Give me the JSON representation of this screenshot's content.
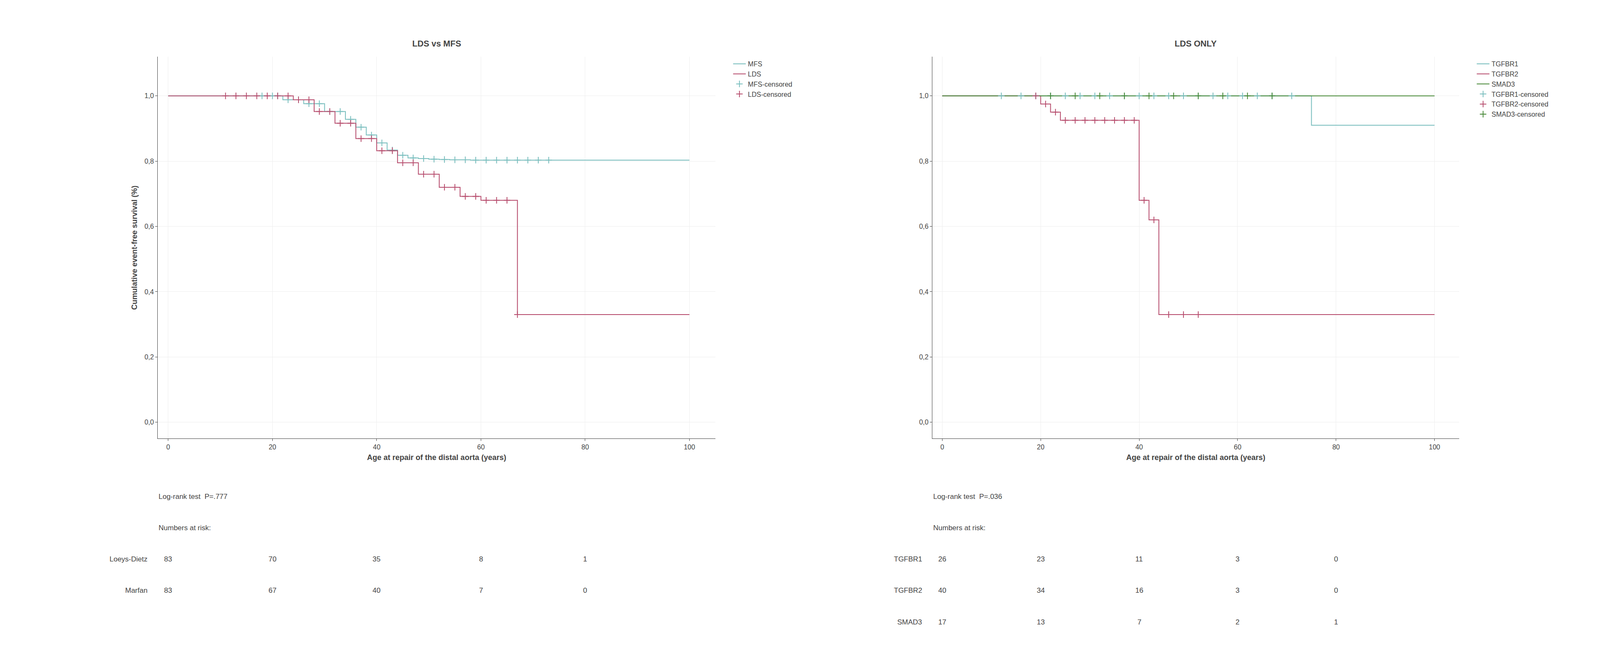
{
  "chart_data": [
    {
      "type": "step",
      "title": "LDS vs MFS",
      "x_label": "Age at repair of the distal aorta (years)",
      "y_label": "Cumulative event-free survival (%)",
      "xlim": [
        -2,
        105
      ],
      "ylim": [
        -0.05,
        1.12
      ],
      "xticks": [
        0,
        20,
        40,
        60,
        80,
        100
      ],
      "yticks": [
        {
          "value": 0.0,
          "label": "0,0"
        },
        {
          "value": 0.2,
          "label": "0,2"
        },
        {
          "value": 0.4,
          "label": "0,4"
        },
        {
          "value": 0.6,
          "label": "0,6"
        },
        {
          "value": 0.8,
          "label": "0,8"
        },
        {
          "value": 1.0,
          "label": "1,0"
        }
      ],
      "grid": true,
      "legend": "right",
      "series": [
        {
          "name": "MFS",
          "color": "#7BBFBF",
          "x": [
            0,
            17,
            22,
            26,
            30,
            34,
            36,
            38,
            40,
            42,
            44,
            46,
            48,
            50,
            52,
            54,
            56,
            58,
            60,
            62,
            65,
            68,
            72,
            75,
            100
          ],
          "values": [
            1.0,
            1.0,
            0.988,
            0.976,
            0.952,
            0.928,
            0.904,
            0.88,
            0.856,
            0.834,
            0.818,
            0.81,
            0.808,
            0.806,
            0.805,
            0.804,
            0.804,
            0.803,
            0.803,
            0.803,
            0.803,
            0.803,
            0.803,
            0.803,
            0.803
          ]
        },
        {
          "name": "LDS",
          "color": "#B85070",
          "x": [
            0,
            10,
            14,
            20,
            24,
            28,
            32,
            36,
            40,
            44,
            48,
            52,
            56,
            60,
            62,
            67,
            100
          ],
          "values": [
            1.0,
            1.0,
            1.0,
            1.0,
            0.988,
            0.952,
            0.916,
            0.869,
            0.832,
            0.795,
            0.76,
            0.72,
            0.692,
            0.68,
            0.68,
            0.33,
            0.33
          ]
        },
        {
          "name": "MFS-censored",
          "type": "scatter",
          "marker": "cross",
          "color": "#7BBFBF",
          "x": [
            18,
            20,
            21,
            23,
            25,
            27,
            29,
            31,
            33,
            35,
            37,
            39,
            41,
            43,
            45,
            47,
            49,
            51,
            53,
            55,
            57,
            59,
            61,
            63,
            65,
            67,
            69,
            71,
            73
          ],
          "values": [
            1.0,
            1.0,
            1.0,
            0.988,
            0.988,
            0.976,
            0.976,
            0.952,
            0.952,
            0.928,
            0.904,
            0.88,
            0.856,
            0.834,
            0.818,
            0.81,
            0.808,
            0.806,
            0.805,
            0.804,
            0.804,
            0.803,
            0.803,
            0.803,
            0.803,
            0.803,
            0.803,
            0.803,
            0.803
          ]
        },
        {
          "name": "LDS-censored",
          "type": "scatter",
          "marker": "cross",
          "color": "#B85070",
          "x": [
            11,
            13,
            15,
            17,
            19,
            21,
            23,
            25,
            27,
            29,
            31,
            33,
            35,
            37,
            39,
            41,
            43,
            45,
            47,
            49,
            51,
            53,
            55,
            57,
            59,
            61,
            63,
            65,
            67
          ],
          "values": [
            1.0,
            1.0,
            1.0,
            1.0,
            1.0,
            1.0,
            1.0,
            0.988,
            0.988,
            0.952,
            0.952,
            0.916,
            0.916,
            0.869,
            0.869,
            0.832,
            0.832,
            0.795,
            0.795,
            0.76,
            0.76,
            0.72,
            0.72,
            0.692,
            0.692,
            0.68,
            0.68,
            0.68,
            0.33
          ]
        }
      ],
      "annotations": [
        {
          "text": "Log-rank test  P=.777"
        }
      ],
      "numbers_at_risk": {
        "label": "Numbers at risk:",
        "x": [
          0,
          20,
          40,
          60,
          80
        ],
        "rows": [
          {
            "label": "Loeys-Dietz",
            "values": [
              83,
              70,
              35,
              8,
              1
            ]
          },
          {
            "label": "Marfan",
            "values": [
              83,
              67,
              40,
              7,
              0
            ]
          }
        ]
      }
    },
    {
      "type": "step",
      "title": "LDS ONLY",
      "x_label": "Age at repair of the distal aorta (years)",
      "xlim": [
        -2,
        105
      ],
      "ylim": [
        -0.05,
        1.12
      ],
      "xticks": [
        0,
        20,
        40,
        60,
        80,
        100
      ],
      "yticks": [
        {
          "value": 0.0,
          "label": "0,0"
        },
        {
          "value": 0.2,
          "label": "0,2"
        },
        {
          "value": 0.4,
          "label": "0,4"
        },
        {
          "value": 0.6,
          "label": "0,6"
        },
        {
          "value": 0.8,
          "label": "0,8"
        },
        {
          "value": 1.0,
          "label": "1,0"
        }
      ],
      "grid": true,
      "legend": "right",
      "series": [
        {
          "name": "TGFBR1",
          "color": "#7BBFBF",
          "x": [
            0,
            10,
            15,
            20,
            25,
            30,
            35,
            40,
            45,
            50,
            55,
            60,
            65,
            70,
            75,
            100
          ],
          "values": [
            1.0,
            1.0,
            1.0,
            1.0,
            1.0,
            1.0,
            1.0,
            1.0,
            1.0,
            1.0,
            1.0,
            1.0,
            1.0,
            1.0,
            0.91,
            0.91
          ]
        },
        {
          "name": "TGFBR2",
          "color": "#B85070",
          "x": [
            0,
            18,
            20,
            22,
            24,
            26,
            28,
            30,
            32,
            34,
            36,
            38,
            40,
            42,
            44,
            58,
            100
          ],
          "values": [
            1.0,
            1.0,
            0.975,
            0.95,
            0.925,
            0.925,
            0.925,
            0.925,
            0.925,
            0.925,
            0.925,
            0.925,
            0.68,
            0.62,
            0.33,
            0.33,
            0.33
          ]
        },
        {
          "name": "SMAD3",
          "color": "#4A8A3A",
          "x": [
            0,
            20,
            25,
            30,
            35,
            40,
            45,
            50,
            55,
            60,
            65,
            70,
            100
          ],
          "values": [
            1.0,
            1.0,
            1.0,
            1.0,
            1.0,
            1.0,
            1.0,
            1.0,
            1.0,
            1.0,
            1.0,
            1.0,
            1.0
          ]
        },
        {
          "name": "TGFBR1-censored",
          "type": "scatter",
          "marker": "cross",
          "color": "#7BBFBF",
          "x": [
            12,
            16,
            19,
            22,
            25,
            28,
            31,
            34,
            37,
            40,
            43,
            46,
            49,
            52,
            55,
            58,
            61,
            64,
            67,
            71
          ],
          "values": [
            1.0,
            1.0,
            1.0,
            1.0,
            1.0,
            1.0,
            1.0,
            1.0,
            1.0,
            1.0,
            1.0,
            1.0,
            1.0,
            1.0,
            1.0,
            1.0,
            1.0,
            1.0,
            1.0,
            1.0
          ]
        },
        {
          "name": "TGFBR2-censored",
          "type": "scatter",
          "marker": "cross",
          "color": "#B85070",
          "x": [
            19,
            21,
            23,
            25,
            27,
            29,
            31,
            33,
            35,
            37,
            39,
            41,
            43,
            46,
            49,
            52
          ],
          "values": [
            1.0,
            0.975,
            0.95,
            0.925,
            0.925,
            0.925,
            0.925,
            0.925,
            0.925,
            0.925,
            0.925,
            0.68,
            0.62,
            0.33,
            0.33,
            0.33
          ]
        },
        {
          "name": "SMAD3-censored",
          "type": "scatter",
          "marker": "cross",
          "color": "#4A8A3A",
          "x": [
            22,
            27,
            32,
            37,
            42,
            47,
            52,
            57,
            62,
            67
          ],
          "values": [
            1.0,
            1.0,
            1.0,
            1.0,
            1.0,
            1.0,
            1.0,
            1.0,
            1.0,
            1.0
          ]
        }
      ],
      "annotations": [
        {
          "text": "Log-rank test  P=.036"
        }
      ],
      "numbers_at_risk": {
        "label": "Numbers at risk:",
        "x": [
          0,
          20,
          40,
          60,
          80
        ],
        "rows": [
          {
            "label": "TGFBR1",
            "values": [
              26,
              23,
              11,
              3,
              0
            ]
          },
          {
            "label": "TGFBR2",
            "values": [
              40,
              34,
              16,
              3,
              0
            ]
          },
          {
            "label": "SMAD3",
            "values": [
              17,
              13,
              7,
              2,
              1
            ]
          }
        ]
      }
    }
  ]
}
